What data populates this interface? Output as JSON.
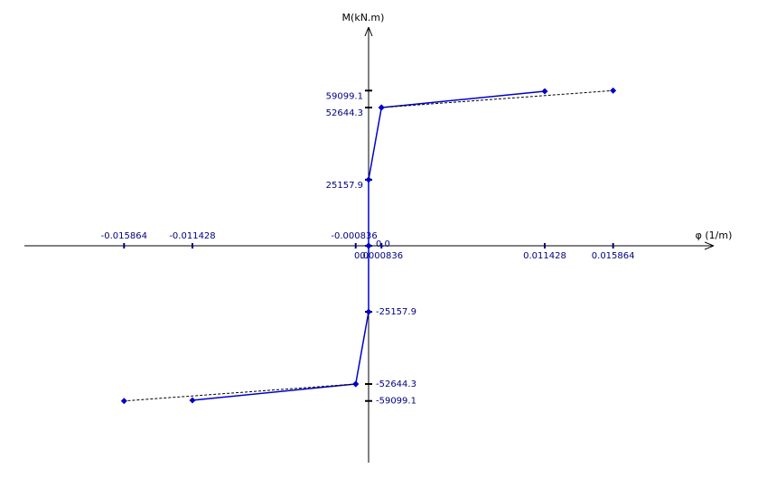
{
  "chart_data": {
    "type": "line",
    "y_label": "M(kN.m)",
    "x_label": "φ (1/m)",
    "xlim": [
      -0.02233,
      0.02239
    ],
    "ylim": [
      -82590,
      83276
    ],
    "xticks": [
      -0.015864,
      -0.011428,
      -0.000836,
      {
        "value": 0,
        "label": "0.0"
      },
      0.000836,
      0.011428,
      0.015864
    ],
    "yticks": [
      59099.1,
      52644.3,
      25157.9,
      {
        "value": 0,
        "label": "0.0"
      },
      -25157.9,
      -52644.3,
      -59099.1
    ],
    "series": [
      {
        "color": "#0000cc",
        "dash": false,
        "x": [
          0,
          0,
          0.000836,
          0.011428
        ],
        "values": [
          0,
          25157.9,
          52644.3,
          58838
        ]
      },
      {
        "color": "#0000cc",
        "dash": false,
        "x": [
          0,
          0,
          -0.000836,
          -0.011428
        ],
        "values": [
          0,
          -25157.9,
          -52644.3,
          -58838
        ]
      },
      {
        "color": "#000000",
        "dash": true,
        "x": [
          0.000836,
          0.015864
        ],
        "values": [
          52644.3,
          59099.1
        ]
      },
      {
        "color": "#000000",
        "dash": true,
        "x": [
          -0.000836,
          -0.015864
        ],
        "values": [
          -52644.3,
          -59099.1
        ]
      }
    ]
  }
}
